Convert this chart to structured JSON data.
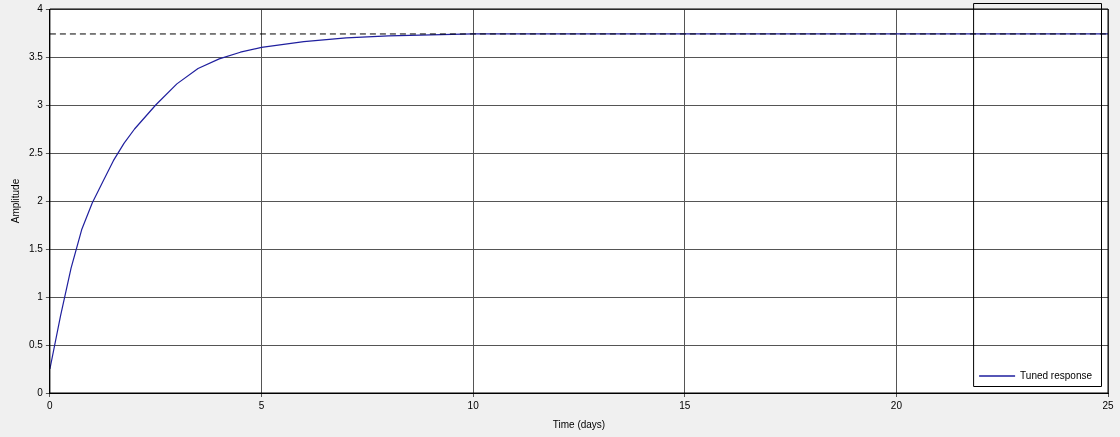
{
  "chart_data": {
    "type": "line",
    "xlabel": "Time (days)",
    "ylabel": "Amplitude",
    "xlim": [
      0,
      25
    ],
    "xticks": [
      0,
      5,
      10,
      15,
      20,
      25
    ],
    "ylim": [
      0,
      4
    ],
    "yticks": [
      0,
      0.5,
      1,
      1.5,
      2,
      2.5,
      3,
      3.5,
      4
    ],
    "grid": true,
    "legend": "bottom right",
    "marker": "none",
    "line_style": "solid",
    "series": [
      {
        "name": "Tuned response",
        "color": "#1f1f9e",
        "x": [
          0,
          0.25,
          0.5,
          0.75,
          1,
          1.25,
          1.5,
          1.75,
          2,
          2.5,
          3,
          3.5,
          4,
          4.5,
          5,
          6,
          7,
          8,
          9,
          10,
          25
        ],
        "values": [
          0.25,
          0.8,
          1.3,
          1.7,
          1.98,
          2.2,
          2.42,
          2.6,
          2.75,
          3.0,
          3.22,
          3.38,
          3.48,
          3.55,
          3.6,
          3.66,
          3.7,
          3.72,
          3.73,
          3.74,
          3.74
        ]
      }
    ],
    "ref_lines": [
      {
        "axis": "y",
        "value": 3.74,
        "color": "#000000",
        "line_style": "dashed"
      }
    ]
  }
}
